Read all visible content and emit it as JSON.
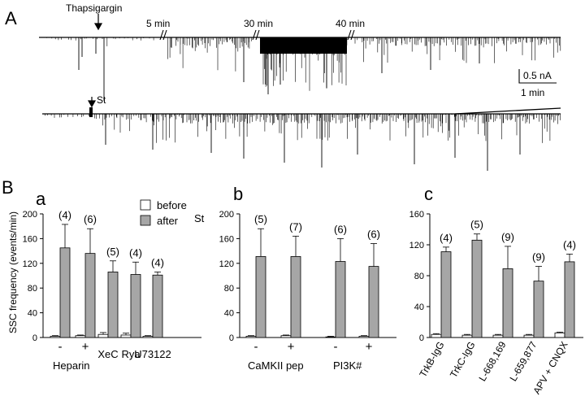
{
  "panel_labels": {
    "A": "A",
    "B": "B",
    "a": "a",
    "b": "b",
    "c": "c"
  },
  "traces": {
    "thapsigargin_label": "Thapsigargin",
    "st_label": "St",
    "time_labels": [
      "5 min",
      "30 min",
      "40 min"
    ],
    "scale_current": "0.5 nA",
    "scale_time": "1 min"
  },
  "legend": {
    "before": "before",
    "after": "after",
    "st_marker": "St"
  },
  "colors": {
    "before": "#ffffff",
    "after": "#a6a6a6",
    "stroke": "#000000"
  },
  "chart_data": [
    {
      "type": "bar",
      "panel": "a",
      "ylabel": "SSC frequency (events/min)",
      "ylim": [
        0,
        200
      ],
      "yticks": [
        0,
        40,
        80,
        120,
        160,
        200
      ],
      "groups": [
        {
          "label": "-",
          "before": 2,
          "after": 145,
          "before_err": 1,
          "after_err": 38,
          "n": "(4)"
        },
        {
          "label": "+",
          "before": 3,
          "after": 136,
          "before_err": 1,
          "after_err": 40,
          "n": "(6)"
        },
        {
          "label": "XeC",
          "before": 5,
          "after": 106,
          "before_err": 3,
          "after_err": 18,
          "n": "(5)"
        },
        {
          "label": "Rya",
          "before": 4,
          "after": 102,
          "before_err": 3,
          "after_err": 20,
          "n": "(4)"
        },
        {
          "label": "U73122",
          "before": 2,
          "after": 101,
          "before_err": 1,
          "after_err": 5,
          "n": "(4)"
        }
      ],
      "category_label": "Heparin"
    },
    {
      "type": "bar",
      "panel": "b",
      "ylim": [
        0,
        200
      ],
      "yticks": [
        0,
        40,
        80,
        120,
        160,
        200
      ],
      "groups": [
        {
          "label": "-",
          "before": 2,
          "after": 131,
          "before_err": 1,
          "after_err": 45,
          "n": "(5)"
        },
        {
          "label": "+",
          "before": 3,
          "after": 131,
          "before_err": 1,
          "after_err": 33,
          "n": "(7)"
        },
        {
          "label": "-",
          "before": 1,
          "after": 123,
          "before_err": 1,
          "after_err": 37,
          "n": "(6)"
        },
        {
          "label": "+",
          "before": 2,
          "after": 115,
          "before_err": 1,
          "after_err": 37,
          "n": "(6)"
        }
      ],
      "category_labels": [
        "CaMKII pep",
        "PI3K#"
      ]
    },
    {
      "type": "bar",
      "panel": "c",
      "ylim": [
        0,
        160
      ],
      "yticks": [
        0,
        40,
        80,
        120,
        160
      ],
      "groups": [
        {
          "label": "TrkB-IgG",
          "before": 4,
          "after": 111,
          "before_err": 1,
          "after_err": 6,
          "n": "(4)"
        },
        {
          "label": "TrkC-IgG",
          "before": 3,
          "after": 126,
          "before_err": 1,
          "after_err": 8,
          "n": "(5)"
        },
        {
          "label": "L-668,169",
          "before": 3,
          "after": 89,
          "before_err": 1,
          "after_err": 29,
          "n": "(9)"
        },
        {
          "label": "L-659,877",
          "before": 3,
          "after": 73,
          "before_err": 1,
          "after_err": 19,
          "n": "(9)"
        },
        {
          "label": "APV + CNQX",
          "before": 6,
          "after": 98,
          "before_err": 1,
          "after_err": 10,
          "n": "(4)"
        }
      ]
    }
  ]
}
